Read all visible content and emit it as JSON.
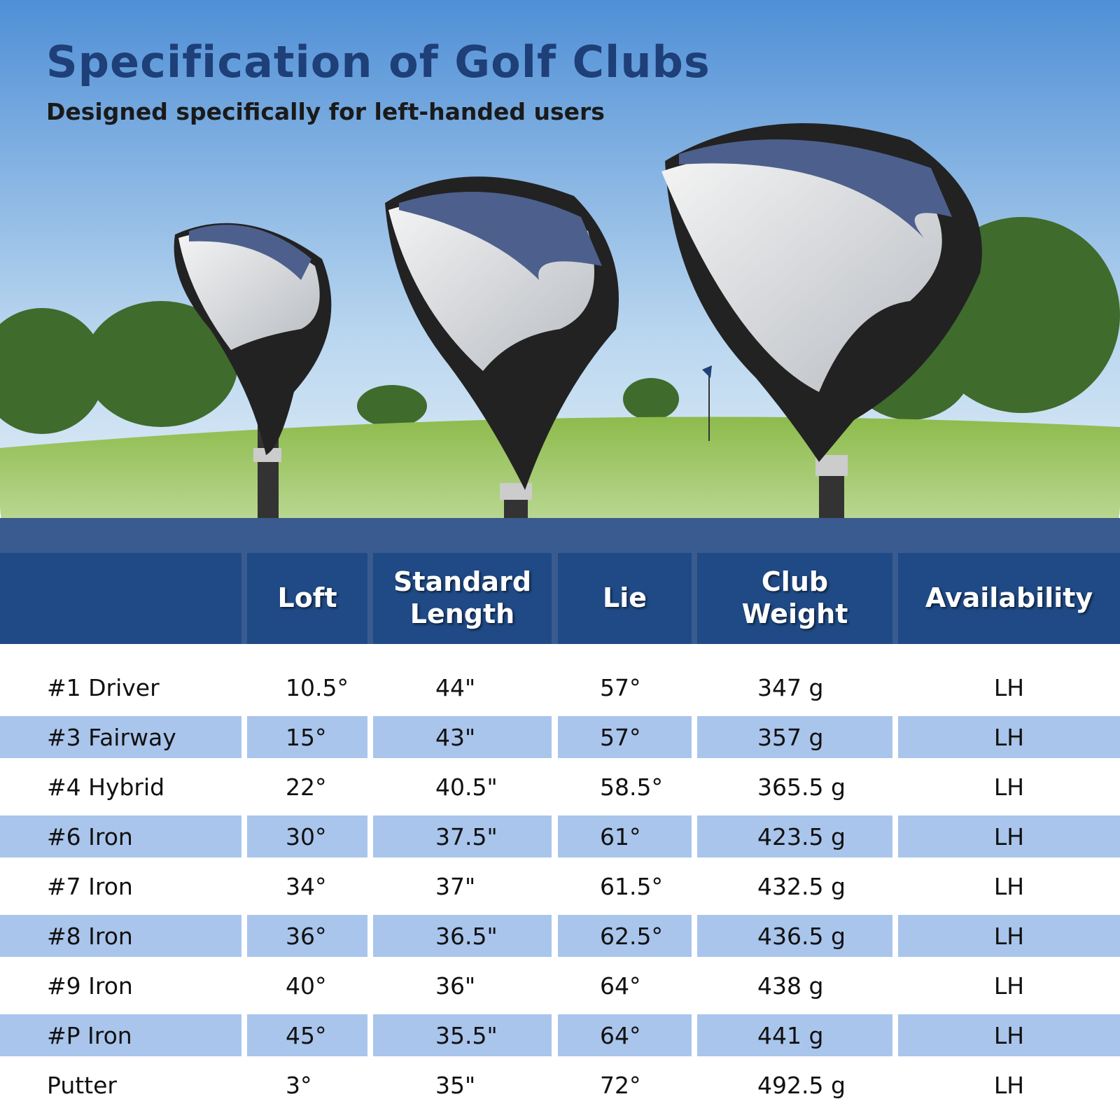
{
  "header": {
    "title": "Specification of Golf Clubs",
    "subtitle": "Designed specifically for left-handed users"
  },
  "table": {
    "columns": [
      "Loft",
      "Standard Length",
      "Lie",
      "Club Weight",
      "Availability"
    ],
    "rows": [
      [
        "#1 Driver",
        "10.5°",
        "44\"",
        "57°",
        "347 g",
        "LH"
      ],
      [
        "#3 Fairway",
        "15°",
        "43\"",
        "57°",
        "357 g",
        "LH"
      ],
      [
        "#4 Hybrid",
        "22°",
        "40.5\"",
        "58.5°",
        "365.5 g",
        "LH"
      ],
      [
        "#6 Iron",
        "30°",
        "37.5\"",
        "61°",
        "423.5 g",
        "LH"
      ],
      [
        "#7 Iron",
        "34°",
        "37\"",
        "61.5°",
        "432.5 g",
        "LH"
      ],
      [
        "#8 Iron",
        "36°",
        "36.5\"",
        "62.5°",
        "436.5 g",
        "LH"
      ],
      [
        "#9 Iron",
        "40°",
        "36\"",
        "64°",
        "438 g",
        "LH"
      ],
      [
        "#P Iron",
        "45°",
        "35.5\"",
        "64°",
        "441 g",
        "LH"
      ],
      [
        "Putter",
        "3°",
        "35\"",
        "72°",
        "492.5 g",
        "LH"
      ]
    ]
  }
}
